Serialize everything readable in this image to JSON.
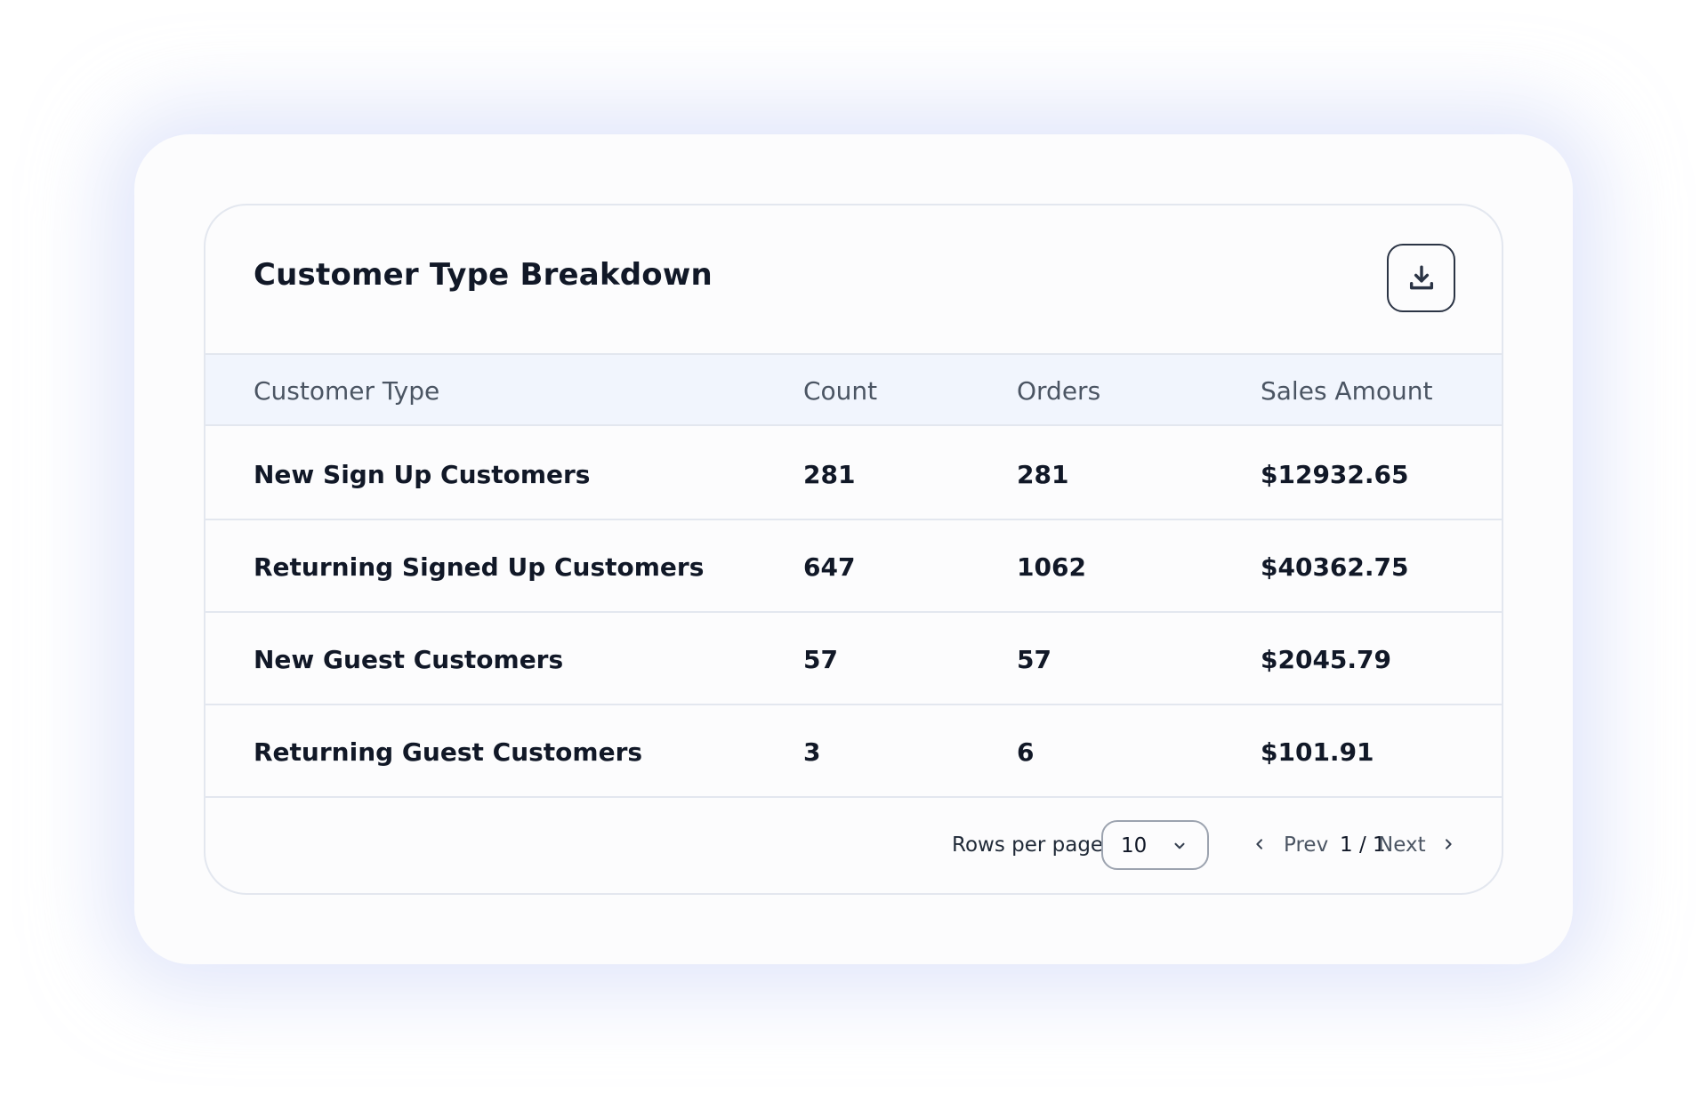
{
  "card": {
    "title": "Customer Type Breakdown",
    "download_icon": "download-icon"
  },
  "table": {
    "columns": [
      "Customer Type",
      "Count",
      "Orders",
      "Sales Amount"
    ],
    "rows": [
      {
        "type": "New Sign Up Customers",
        "count": "281",
        "orders": "281",
        "sales": "$12932.65"
      },
      {
        "type": "Returning Signed Up Customers",
        "count": "647",
        "orders": "1062",
        "sales": "$40362.75"
      },
      {
        "type": "New Guest Customers",
        "count": "57",
        "orders": "57",
        "sales": "$2045.79"
      },
      {
        "type": "Returning Guest Customers",
        "count": "3",
        "orders": "6",
        "sales": "$101.91"
      }
    ]
  },
  "pagination": {
    "rows_per_page_label": "Rows per page",
    "rows_per_page_value": "10",
    "prev_label": "Prev",
    "status": "1 / 1",
    "next_label": "Next"
  },
  "colors": {
    "header_bg": "#f1f5fd",
    "border": "#e3e7ef",
    "text_primary": "#111827",
    "text_secondary": "#4b5563"
  }
}
